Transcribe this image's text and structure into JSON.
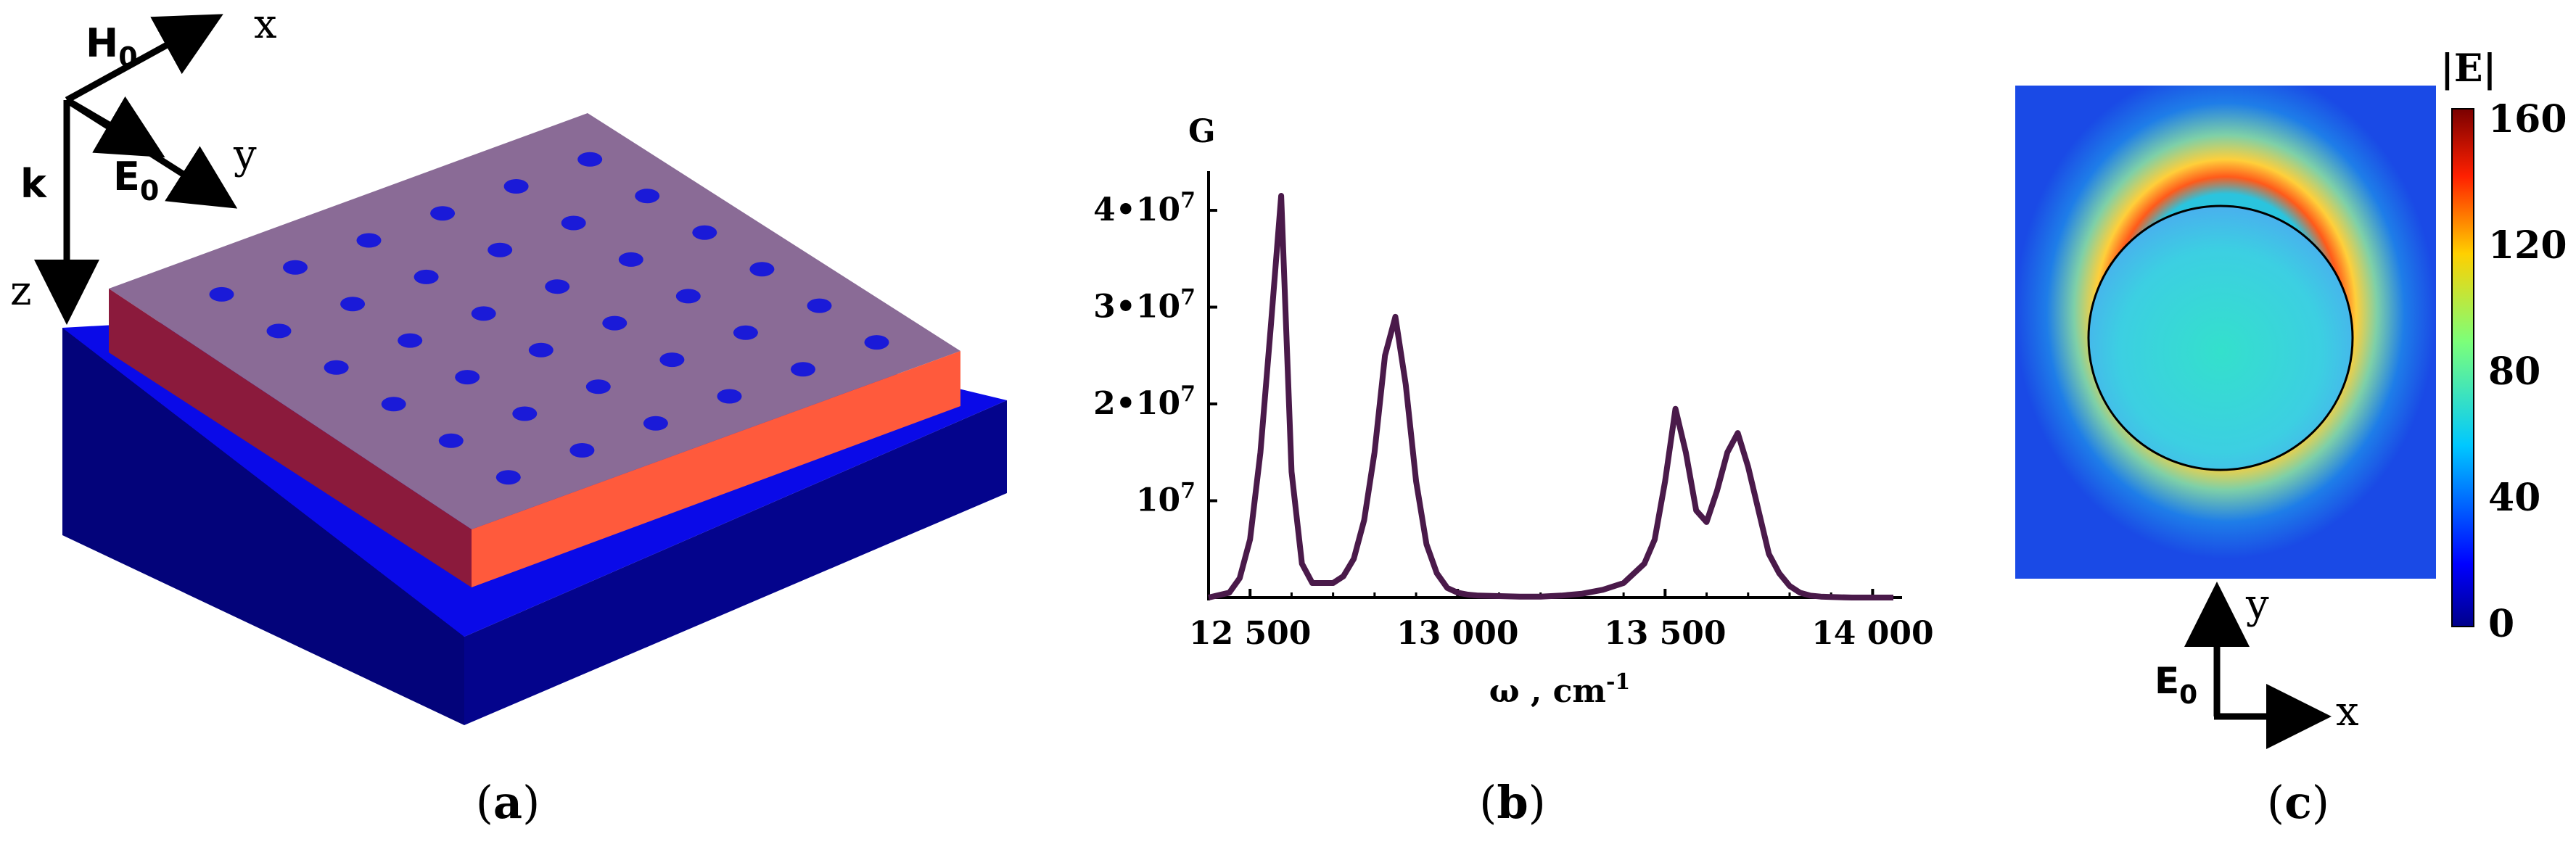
{
  "figure": {
    "panels": [
      {
        "id": "a",
        "caption": "a"
      },
      {
        "id": "b",
        "caption": "b"
      },
      {
        "id": "c",
        "caption": "c"
      }
    ]
  },
  "panel_a": {
    "axes": {
      "x": "x",
      "y": "y",
      "z": "z",
      "h0_main": "H",
      "h0_sub": "0",
      "e0_main": "E",
      "e0_sub": "0",
      "k": "k"
    },
    "colors": {
      "substrate_top": "#0a0ae8",
      "substrate_front": "#02026e",
      "substrate_side": "#05059a",
      "film_top": "#8b6b96",
      "film_left": "#8b1a3c",
      "film_front": "#ff5a3c",
      "holes": "#1a1ad8"
    },
    "hole_grid": {
      "rows": 6,
      "cols": 6
    }
  },
  "panel_b": {
    "ylabel": "G",
    "xlabel_main": "ω , cm",
    "xlabel_sup": "-1",
    "ytick_labels": [
      "4•10",
      "3•10",
      "2•10",
      "10"
    ],
    "ytick_sup": "7",
    "xtick_labels": [
      "12 500",
      "13 000",
      "13 500",
      "14 000"
    ],
    "line_color": "#4a1a4a"
  },
  "panel_c": {
    "colorbar_title": "|E|",
    "colorbar_ticks": [
      "160",
      "120",
      "80",
      "40",
      "0"
    ],
    "axes": {
      "y": "y",
      "x": "x",
      "e0_main": "E",
      "e0_sub": "0"
    }
  },
  "chart_data": {
    "type": "line",
    "title": "",
    "xlabel": "ω , cm-1",
    "ylabel": "G",
    "xlim": [
      12400,
      14050
    ],
    "ylim": [
      0,
      43000000
    ],
    "xticks": [
      12500,
      13000,
      13500,
      14000
    ],
    "yticks": [
      10000000,
      20000000,
      30000000,
      40000000
    ],
    "series": [
      {
        "name": "G",
        "x": [
          12400,
          12450,
          12475,
          12500,
          12525,
          12550,
          12575,
          12600,
          12625,
          12650,
          12700,
          12725,
          12750,
          12775,
          12800,
          12825,
          12850,
          12875,
          12900,
          12925,
          12950,
          12975,
          13000,
          13025,
          13050,
          13100,
          13150,
          13200,
          13250,
          13300,
          13350,
          13400,
          13450,
          13475,
          13500,
          13525,
          13550,
          13575,
          13600,
          13625,
          13650,
          13675,
          13700,
          13725,
          13750,
          13775,
          13800,
          13825,
          13850,
          13875,
          13900,
          13950,
          14000,
          14050
        ],
        "y": [
          0,
          500000,
          2000000,
          6000000,
          15000000,
          28000000,
          41500000,
          13000000,
          3500000,
          1500000,
          1500000,
          2200000,
          4000000,
          8000000,
          15000000,
          25000000,
          29000000,
          22000000,
          12000000,
          5500000,
          2500000,
          1000000,
          500000,
          300000,
          200000,
          150000,
          100000,
          100000,
          200000,
          400000,
          800000,
          1500000,
          3500000,
          6000000,
          12000000,
          19500000,
          15000000,
          9000000,
          7800000,
          11000000,
          15000000,
          17000000,
          13500000,
          9000000,
          4500000,
          2500000,
          1200000,
          500000,
          200000,
          100000,
          50000,
          0,
          0,
          0
        ]
      }
    ]
  }
}
